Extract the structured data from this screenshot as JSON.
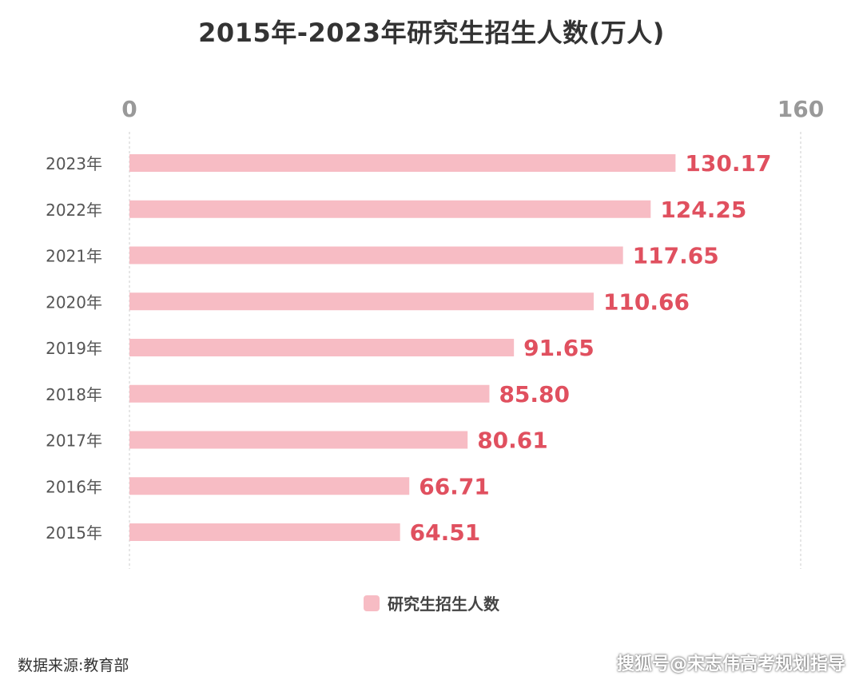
{
  "chart_data": {
    "type": "bar",
    "orientation": "horizontal",
    "title": "2015年-2023年研究生招生人数(万人)",
    "categories": [
      "2023年",
      "2022年",
      "2021年",
      "2020年",
      "2019年",
      "2018年",
      "2017年",
      "2016年",
      "2015年"
    ],
    "series": [
      {
        "name": "研究生招生人数",
        "values": [
          130.17,
          124.25,
          117.65,
          110.66,
          91.65,
          85.8,
          80.61,
          66.71,
          64.51
        ],
        "value_labels": [
          "130.17",
          "124.25",
          "117.65",
          "110.66",
          "91.65",
          "85.80",
          "80.61",
          "66.71",
          "64.51"
        ]
      }
    ],
    "xlim": [
      0,
      160
    ],
    "xticks": [
      "0",
      "160"
    ],
    "xaxis_position": "top",
    "legend_position": "bottom-center",
    "grid": false,
    "colors": {
      "bar": "#f7bcc4",
      "value_label": "#e0505f",
      "axis_tick_label": "#999999",
      "category_label": "#555555",
      "axis_line": "#dddddd"
    }
  },
  "legend": {
    "label": "研究生招生人数"
  },
  "source_note": "数据来源:教育部",
  "watermark": "搜狐号@宋志伟高考规划指导"
}
